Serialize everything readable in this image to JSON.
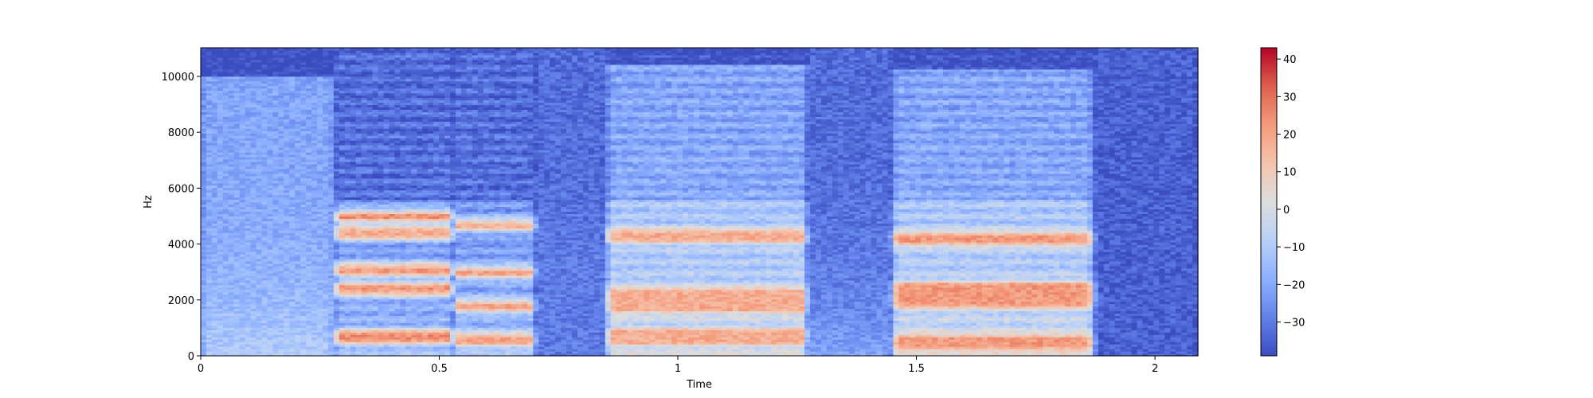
{
  "chart_data": {
    "type": "heatmap",
    "title": "",
    "xlabel": "Time",
    "ylabel": "Hz",
    "xlim": [
      0,
      2.09
    ],
    "ylim": [
      0,
      11025
    ],
    "xticks": [
      0,
      0.5,
      1,
      1.5,
      2
    ],
    "xtick_labels": [
      "0",
      "0.5",
      "1",
      "1.5",
      "2"
    ],
    "yticks": [
      0,
      2000,
      4000,
      6000,
      8000,
      10000
    ],
    "ytick_labels": [
      "0",
      "2000",
      "4000",
      "6000",
      "8000",
      "10000"
    ],
    "colorbar": {
      "colormap": "coolwarm",
      "range": [
        -39,
        43
      ],
      "ticks": [
        -30,
        -20,
        -10,
        0,
        10,
        20,
        30,
        40
      ],
      "tick_labels": [
        "−30",
        "−20",
        "−10",
        "0",
        "10",
        "20",
        "30",
        "40"
      ]
    },
    "segments": [
      {
        "start": 0.0,
        "end": 0.28,
        "peak_db": -10,
        "high_band_top_hz": 10000
      },
      {
        "start": 0.28,
        "end": 0.53,
        "peak_db": 25,
        "formants_hz": [
          700,
          2400,
          3100,
          4400,
          5000
        ]
      },
      {
        "start": 0.53,
        "end": 0.7,
        "peak_db": 20,
        "formants_hz": [
          600,
          1800,
          3000,
          4700
        ]
      },
      {
        "start": 0.7,
        "end": 0.85,
        "peak_db": -30
      },
      {
        "start": 0.85,
        "end": 1.27,
        "peak_db": 18,
        "formants_hz": [
          700,
          1800,
          2200,
          4300
        ],
        "high_band_top_hz": 10400
      },
      {
        "start": 1.27,
        "end": 1.45,
        "peak_db": -15
      },
      {
        "start": 1.45,
        "end": 1.87,
        "peak_db": 22,
        "formants_hz": [
          500,
          2000,
          2400,
          4200
        ],
        "high_band_top_hz": 10300
      },
      {
        "start": 1.87,
        "end": 2.09,
        "peak_db": -35
      }
    ]
  }
}
